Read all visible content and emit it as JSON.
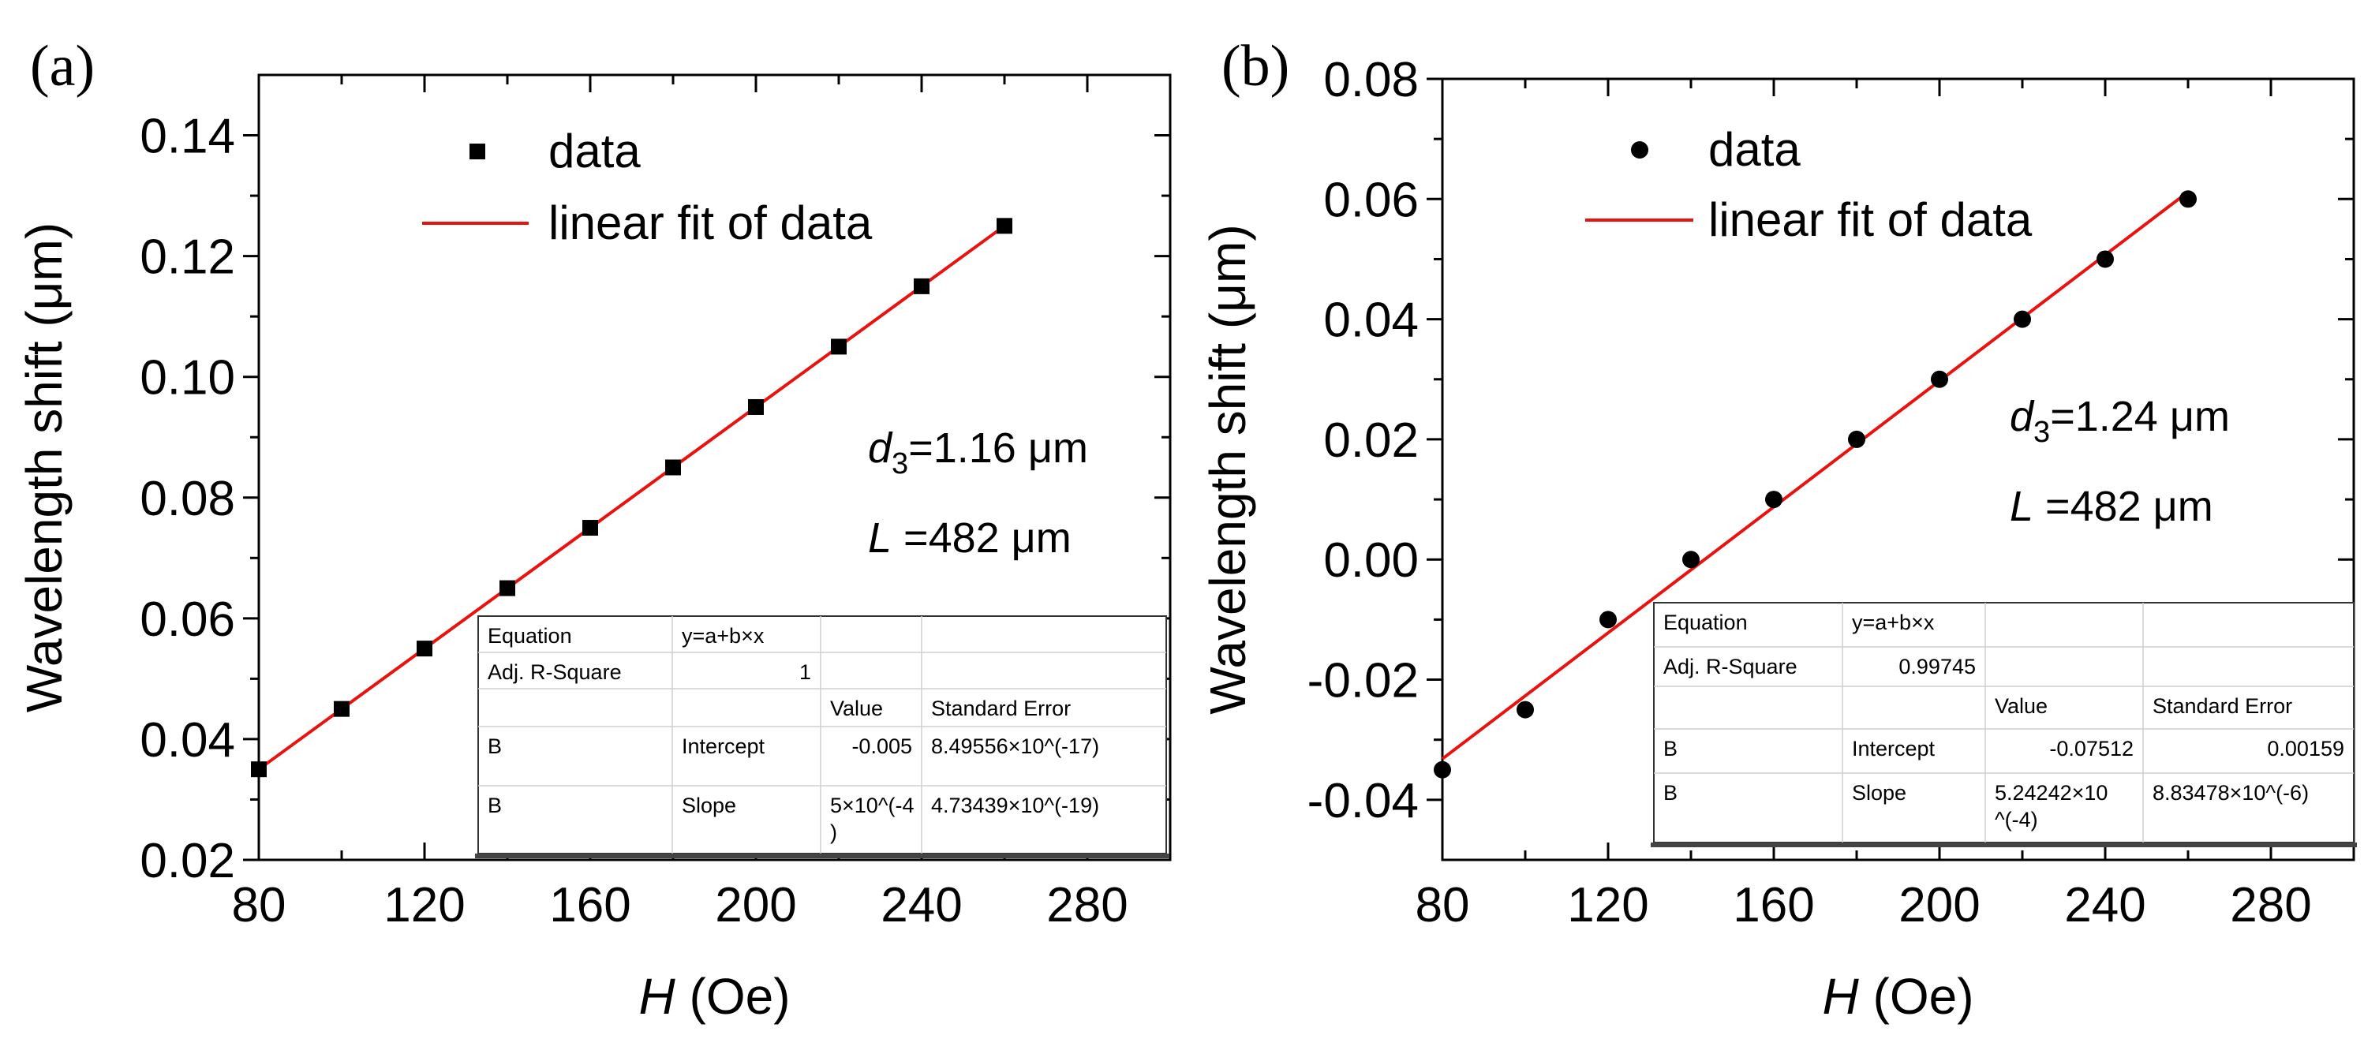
{
  "chart_data": [
    {
      "type": "scatter",
      "panel_label": "(a)",
      "xlabel_italic": "H",
      "xlabel_unit": "(Oe)",
      "ylabel": "Wavelength shift (μm)",
      "xlim": [
        80,
        300
      ],
      "ylim": [
        0.02,
        0.15
      ],
      "xticks": [
        80,
        120,
        160,
        200,
        240,
        280
      ],
      "yticks": [
        0.02,
        0.04,
        0.06,
        0.08,
        0.1,
        0.12,
        0.14
      ],
      "ytick_labels": [
        "0.02",
        "0.04",
        "0.06",
        "0.08",
        "0.10",
        "0.12",
        "0.14"
      ],
      "marker": "square",
      "series": [
        {
          "name": "data",
          "x": [
            80,
            100,
            120,
            140,
            160,
            180,
            200,
            220,
            240,
            260
          ],
          "y": [
            0.035,
            0.045,
            0.055,
            0.065,
            0.075,
            0.085,
            0.095,
            0.105,
            0.115,
            0.125
          ]
        }
      ],
      "fit": {
        "name": "linear fit of data",
        "intercept": -0.005,
        "slope": 0.0005,
        "x_range": [
          80,
          260
        ],
        "color": "#e8130f"
      },
      "legend": {
        "position": "top-left",
        "entries": [
          "data",
          "linear fit of data"
        ]
      },
      "annotations": {
        "d_var": "d",
        "d_sub": "3",
        "d_value": "=1.16 μm",
        "L_var": "L",
        "L_value": " =482 μm"
      },
      "fit_table": {
        "rows": [
          [
            "Equation",
            "y=a+b×x",
            "",
            ""
          ],
          [
            "Adj. R-Square",
            "1",
            "",
            ""
          ],
          [
            "",
            "",
            "Value",
            "Standard Error"
          ],
          [
            "B",
            "Intercept",
            "-0.005",
            "8.49556×10^(-17)"
          ],
          [
            "B",
            "Slope",
            "5×10^(-4",
            "4.73439×10^(-19)"
          ]
        ],
        "slope_value_wrap": ")"
      }
    },
    {
      "type": "scatter",
      "panel_label": "(b)",
      "xlabel_italic": "H",
      "xlabel_unit": "(Oe)",
      "ylabel": "Wavelength shift (μm)",
      "xlim": [
        80,
        300
      ],
      "ylim": [
        -0.05,
        0.08
      ],
      "xticks": [
        80,
        120,
        160,
        200,
        240,
        280
      ],
      "yticks": [
        -0.04,
        -0.02,
        0.0,
        0.02,
        0.04,
        0.06,
        0.08
      ],
      "ytick_labels": [
        "-0.04",
        "-0.02",
        "0.00",
        "0.02",
        "0.04",
        "0.06",
        "0.08"
      ],
      "marker": "circle",
      "series": [
        {
          "name": "data",
          "x": [
            80,
            100,
            120,
            140,
            160,
            180,
            200,
            220,
            240,
            260
          ],
          "y": [
            -0.035,
            -0.025,
            -0.01,
            0.0,
            0.01,
            0.02,
            0.03,
            0.04,
            0.05,
            0.06
          ]
        }
      ],
      "fit": {
        "name": "linear fit of data",
        "intercept": -0.07512,
        "slope": 0.000524242,
        "x_range": [
          80,
          260
        ],
        "color": "#e8130f"
      },
      "legend": {
        "position": "top-left",
        "entries": [
          "data",
          "linear fit of data"
        ]
      },
      "annotations": {
        "d_var": "d",
        "d_sub": "3",
        "d_value": "=1.24 μm",
        "L_var": "L",
        "L_value": " =482 μm"
      },
      "fit_table": {
        "rows": [
          [
            "Equation",
            "y=a+b×x",
            "",
            ""
          ],
          [
            "Adj. R-Square",
            "0.99745",
            "",
            ""
          ],
          [
            "",
            "",
            "Value",
            "Standard Error"
          ],
          [
            "B",
            "Intercept",
            "-0.07512",
            "0.00159"
          ],
          [
            "B",
            "Slope",
            "5.24242×10",
            "8.83478×10^(-6)"
          ]
        ],
        "slope_value_wrap": "^(-4)"
      }
    }
  ]
}
